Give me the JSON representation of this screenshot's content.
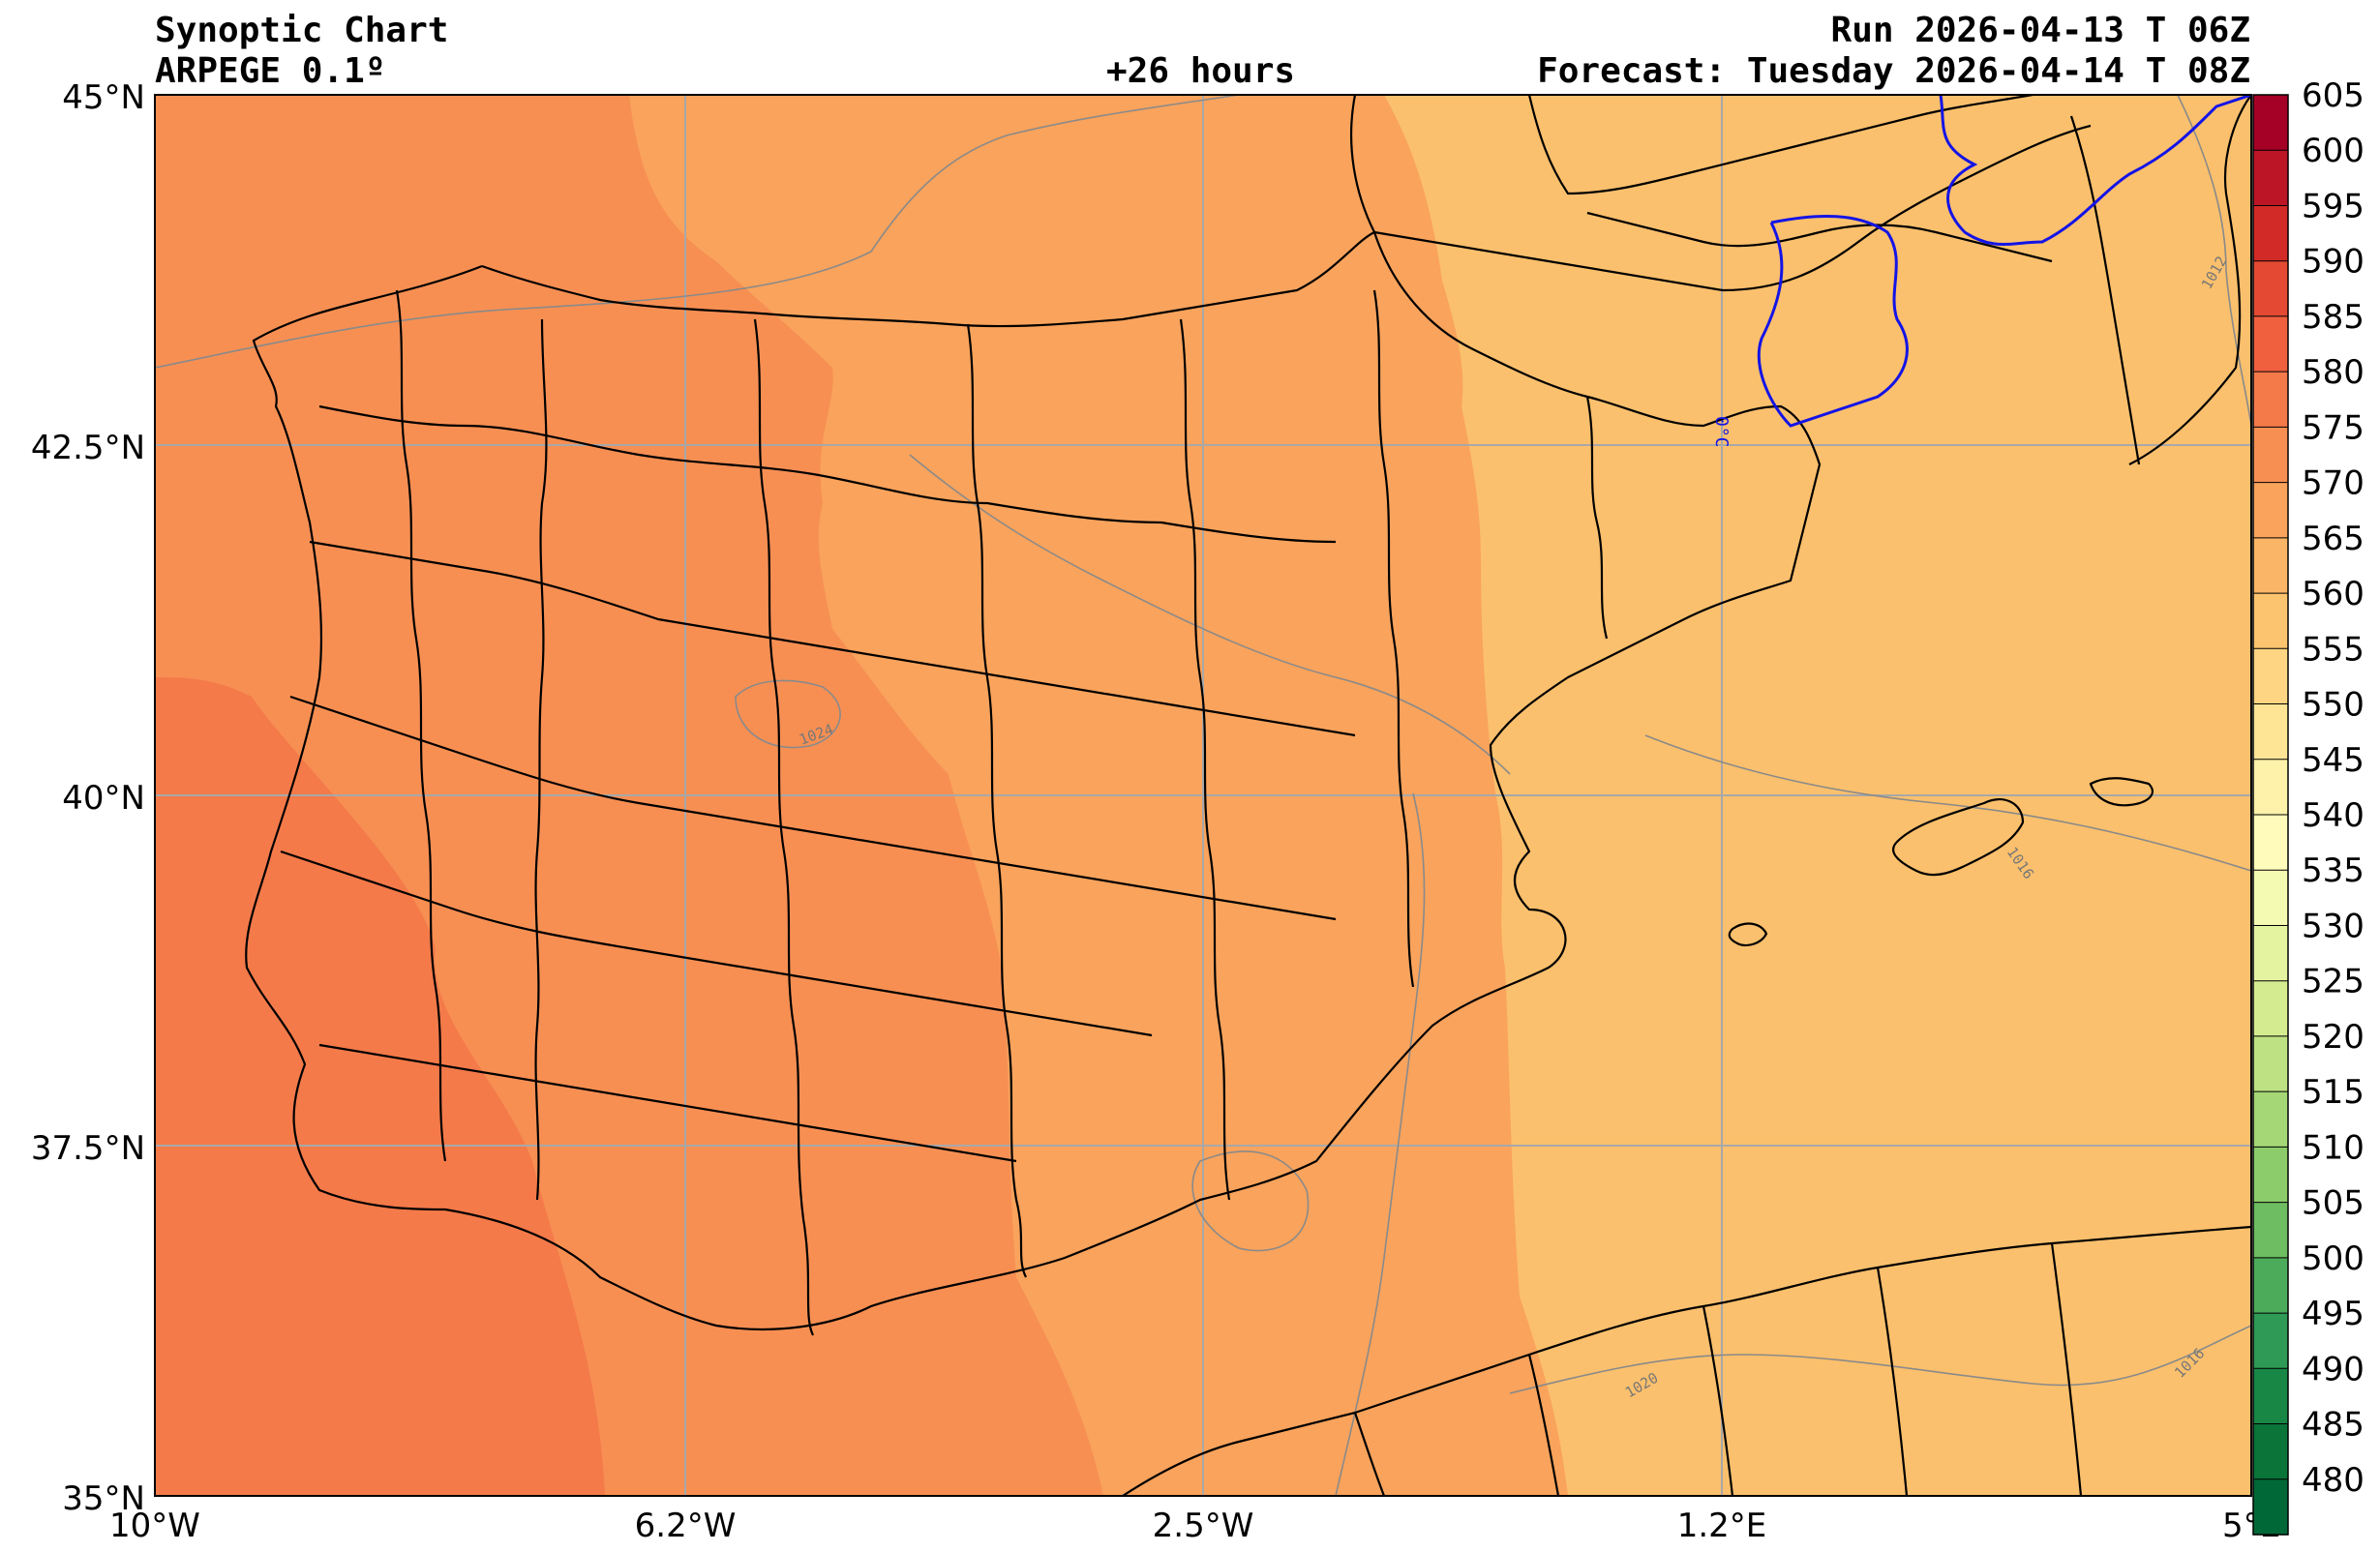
{
  "header": {
    "title": "Synoptic Chart",
    "model": "ARPEGE 0.1º",
    "lead_time": "+26 hours",
    "run": "Run 2026-04-13 T 06Z",
    "forecast": "Forecast: Tuesday 2026-04-14 T 08Z"
  },
  "axes": {
    "lat_ticks": [
      "45°N",
      "42.5°N",
      "40°N",
      "37.5°N",
      "35°N"
    ],
    "lon_ticks": [
      "10°W",
      "6.2°W",
      "2.5°W",
      "1.2°E",
      "5°E"
    ]
  },
  "colorbar": {
    "labels": [
      "605",
      "600",
      "595",
      "590",
      "585",
      "580",
      "575",
      "570",
      "565",
      "560",
      "555",
      "550",
      "545",
      "540",
      "535",
      "530",
      "525",
      "520",
      "515",
      "510",
      "505",
      "500",
      "495",
      "490",
      "485",
      "480"
    ],
    "colors": [
      "#a50026",
      "#bb1526",
      "#d22b27",
      "#e34933",
      "#f0603f",
      "#f47a4a",
      "#f78f53",
      "#f9a35c",
      "#fbb566",
      "#fdc46f",
      "#fed582",
      "#fee596",
      "#fef1a9",
      "#fffcbb",
      "#f4fab1",
      "#e4f3a0",
      "#d4ec8f",
      "#bee283",
      "#a5d776",
      "#8ccc6b",
      "#6ebd62",
      "#4cab5b",
      "#2e9a55",
      "#188746",
      "#0a7439",
      "#006837"
    ]
  },
  "contour_labels": [
    "1024",
    "1016",
    "1012",
    "1016",
    "1020",
    "0°C"
  ],
  "map_colors": {
    "ocean_west": "#f47a4a",
    "band_2": "#f78f53",
    "band_3": "#f9a35c",
    "band_east": "#fbc06d",
    "isobar": "#8a8a8a",
    "freezing_line": "#1414e6",
    "borders": "#000000",
    "grid": "#a8a8a8"
  }
}
